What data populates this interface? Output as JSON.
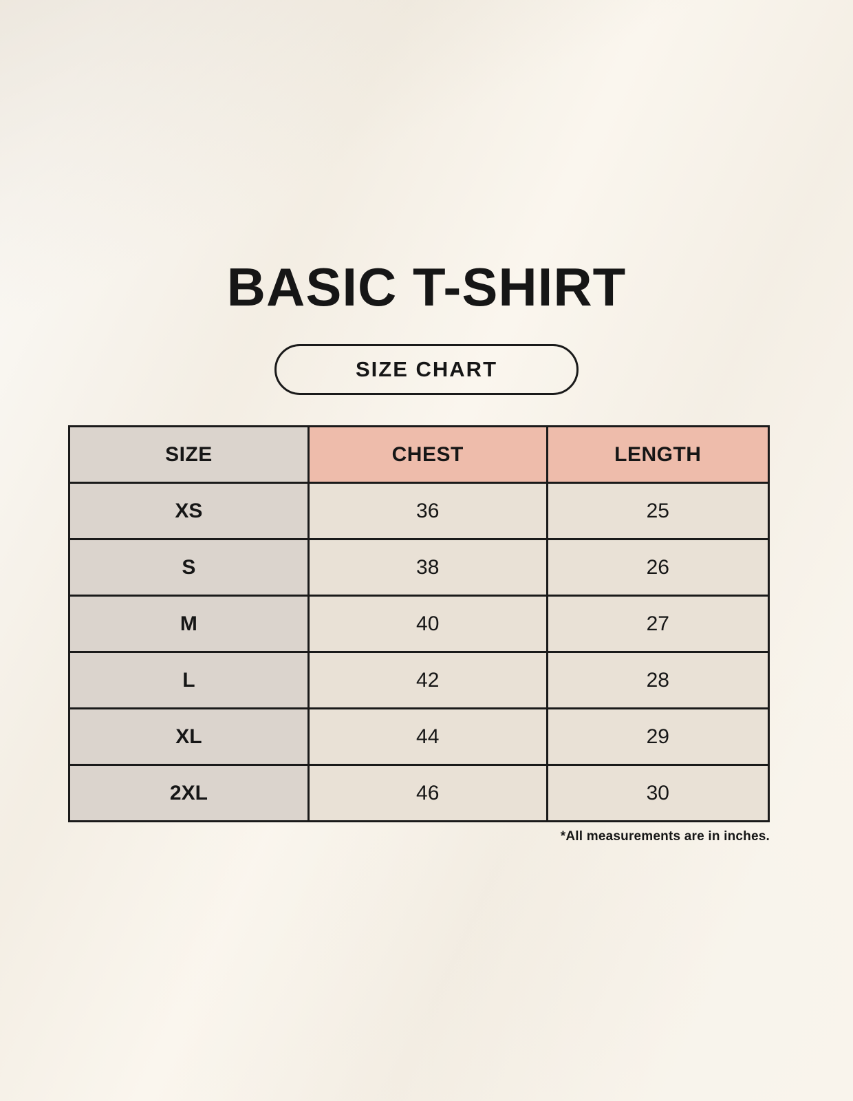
{
  "chart_data": {
    "type": "table",
    "title": "BASIC T-SHIRT",
    "badge": "SIZE CHART",
    "columns": [
      "SIZE",
      "CHEST",
      "LENGTH"
    ],
    "rows": [
      [
        "XS",
        "36",
        "25"
      ],
      [
        "S",
        "38",
        "26"
      ],
      [
        "M",
        "40",
        "27"
      ],
      [
        "L",
        "42",
        "28"
      ],
      [
        "XL",
        "44",
        "29"
      ],
      [
        "2XL",
        "46",
        "30"
      ]
    ],
    "footnote": "*All measurements are in inches.",
    "units": "inches"
  },
  "colors": {
    "background": "#f6f1e8",
    "ink": "#161616",
    "border": "#1a1a1a",
    "size_column_bg": "#dbd4cd",
    "header_accent_bg": "#eebcab",
    "cell_bg": "#e9e1d6"
  }
}
